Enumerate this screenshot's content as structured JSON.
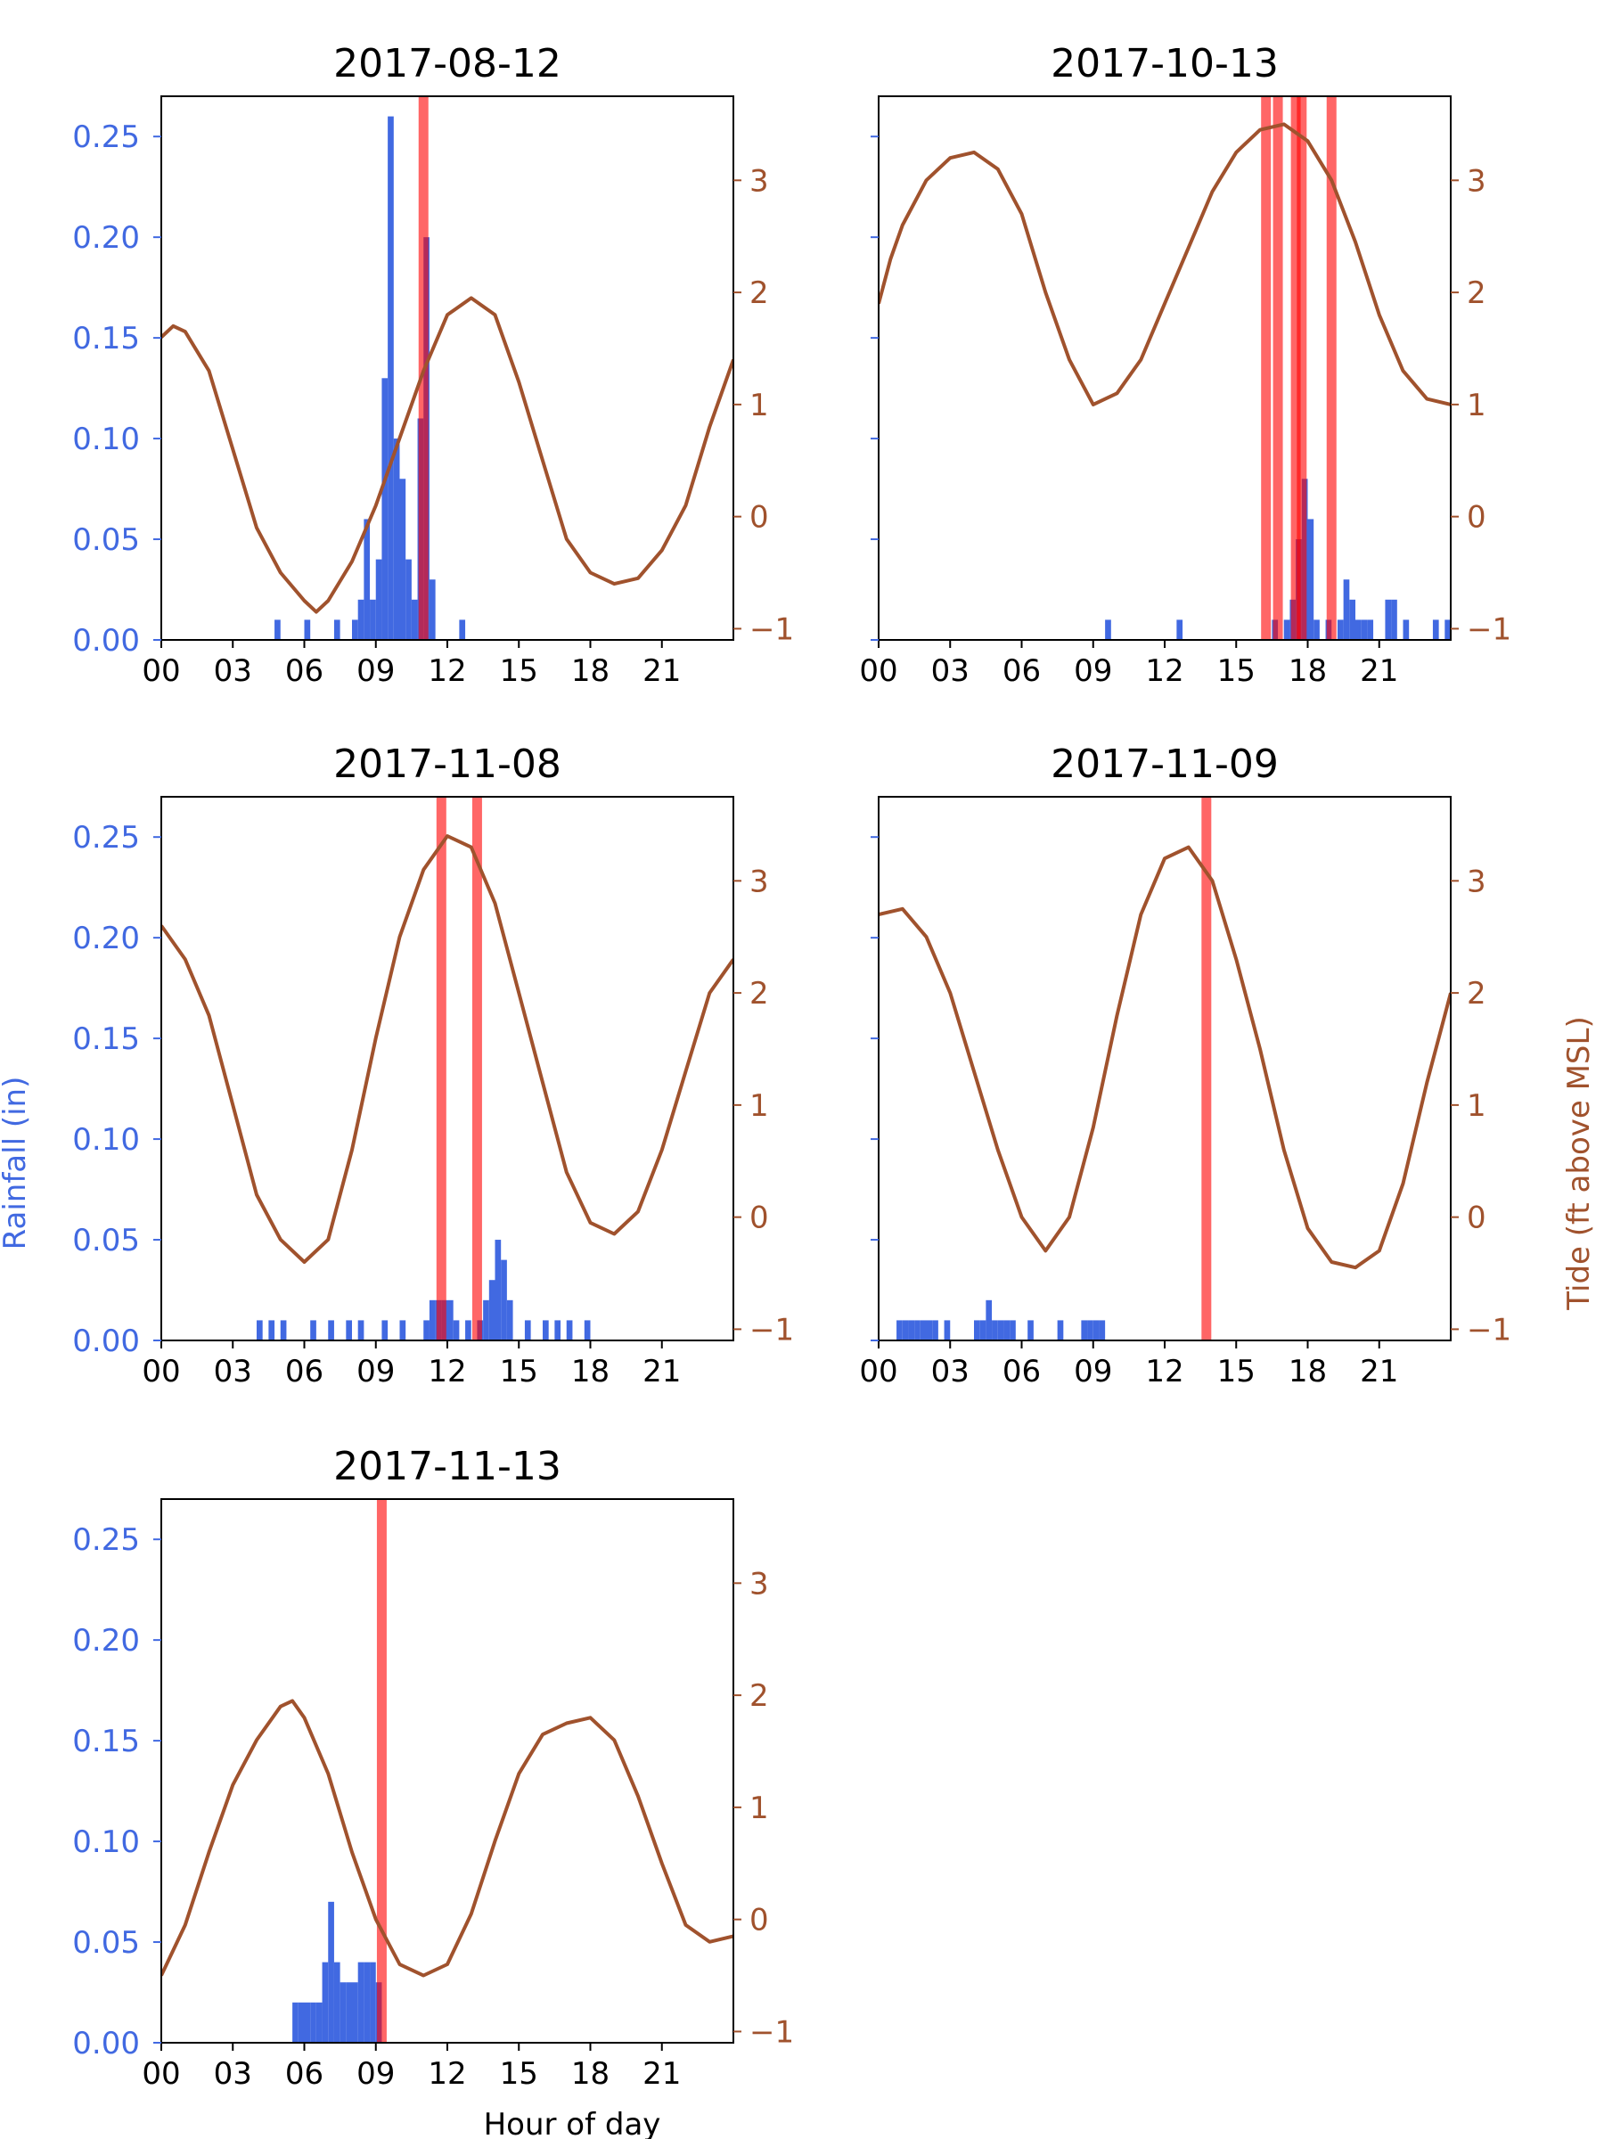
{
  "figure": {
    "xlabel": "Hour of day",
    "ylabel_left": "Rainfall (in)",
    "ylabel_right": "Tide (ft above MSL)",
    "colors": {
      "rain": "#4169e1",
      "tide": "#a0522d",
      "flood": "#ff0000",
      "text": "#000000"
    }
  },
  "chart_data": [
    {
      "type": "bar",
      "title": "2017-08-12",
      "xlim": [
        0,
        24
      ],
      "ylim_left": [
        0,
        0.27
      ],
      "ylim_right": [
        -1.1,
        3.75
      ],
      "x_ticks": [
        "00",
        "03",
        "06",
        "09",
        "12",
        "15",
        "18",
        "21"
      ],
      "left_ticks": [
        "0.00",
        "0.05",
        "0.10",
        "0.15",
        "0.20",
        "0.25"
      ],
      "right_ticks": [
        "−1",
        "0",
        "1",
        "2",
        "3"
      ],
      "rain": [
        [
          4.75,
          0.01
        ],
        [
          6.0,
          0.01
        ],
        [
          7.25,
          0.01
        ],
        [
          8.0,
          0.01
        ],
        [
          8.25,
          0.02
        ],
        [
          8.5,
          0.06
        ],
        [
          8.75,
          0.02
        ],
        [
          9.0,
          0.04
        ],
        [
          9.25,
          0.13
        ],
        [
          9.5,
          0.26
        ],
        [
          9.75,
          0.1
        ],
        [
          10.0,
          0.08
        ],
        [
          10.25,
          0.04
        ],
        [
          10.5,
          0.02
        ],
        [
          10.75,
          0.11
        ],
        [
          11.0,
          0.2
        ],
        [
          11.25,
          0.03
        ],
        [
          12.5,
          0.01
        ]
      ],
      "tide": [
        [
          0,
          1.6
        ],
        [
          0.5,
          1.7
        ],
        [
          1.0,
          1.65
        ],
        [
          2.0,
          1.3
        ],
        [
          3.0,
          0.6
        ],
        [
          4.0,
          -0.1
        ],
        [
          5.0,
          -0.5
        ],
        [
          6.0,
          -0.75
        ],
        [
          6.5,
          -0.85
        ],
        [
          7.0,
          -0.75
        ],
        [
          8.0,
          -0.4
        ],
        [
          9.0,
          0.1
        ],
        [
          10.0,
          0.7
        ],
        [
          11.0,
          1.3
        ],
        [
          12.0,
          1.8
        ],
        [
          13.0,
          1.95
        ],
        [
          14.0,
          1.8
        ],
        [
          15.0,
          1.2
        ],
        [
          16.0,
          0.5
        ],
        [
          17.0,
          -0.2
        ],
        [
          18.0,
          -0.5
        ],
        [
          19.0,
          -0.6
        ],
        [
          20.0,
          -0.55
        ],
        [
          21.0,
          -0.3
        ],
        [
          22.0,
          0.1
        ],
        [
          23.0,
          0.8
        ],
        [
          24.0,
          1.4
        ]
      ],
      "flood_times": [
        11.0
      ]
    },
    {
      "type": "bar",
      "title": "2017-10-13",
      "xlim": [
        0,
        24
      ],
      "ylim_left": [
        0,
        0.27
      ],
      "ylim_right": [
        -1.1,
        3.75
      ],
      "x_ticks": [
        "00",
        "03",
        "06",
        "09",
        "12",
        "15",
        "18",
        "21"
      ],
      "left_ticks": [],
      "right_ticks": [
        "−1",
        "0",
        "1",
        "2",
        "3"
      ],
      "rain": [
        [
          9.5,
          0.01
        ],
        [
          12.5,
          0.01
        ],
        [
          16.5,
          0.01
        ],
        [
          17.0,
          0.01
        ],
        [
          17.25,
          0.02
        ],
        [
          17.5,
          0.05
        ],
        [
          17.75,
          0.08
        ],
        [
          18.0,
          0.06
        ],
        [
          18.25,
          0.01
        ],
        [
          18.75,
          0.01
        ],
        [
          19.25,
          0.01
        ],
        [
          19.5,
          0.03
        ],
        [
          19.75,
          0.02
        ],
        [
          20.0,
          0.01
        ],
        [
          20.25,
          0.01
        ],
        [
          20.5,
          0.01
        ],
        [
          21.25,
          0.02
        ],
        [
          21.5,
          0.02
        ],
        [
          22.0,
          0.01
        ],
        [
          23.25,
          0.01
        ],
        [
          23.75,
          0.01
        ]
      ],
      "tide": [
        [
          0,
          1.9
        ],
        [
          0.5,
          2.3
        ],
        [
          1.0,
          2.6
        ],
        [
          2.0,
          3.0
        ],
        [
          3.0,
          3.2
        ],
        [
          4.0,
          3.25
        ],
        [
          5.0,
          3.1
        ],
        [
          6.0,
          2.7
        ],
        [
          7.0,
          2.0
        ],
        [
          8.0,
          1.4
        ],
        [
          9.0,
          1.0
        ],
        [
          10.0,
          1.1
        ],
        [
          11.0,
          1.4
        ],
        [
          12.0,
          1.9
        ],
        [
          13.0,
          2.4
        ],
        [
          14.0,
          2.9
        ],
        [
          15.0,
          3.25
        ],
        [
          16.0,
          3.45
        ],
        [
          17.0,
          3.5
        ],
        [
          18.0,
          3.35
        ],
        [
          19.0,
          3.0
        ],
        [
          20.0,
          2.45
        ],
        [
          21.0,
          1.8
        ],
        [
          22.0,
          1.3
        ],
        [
          23.0,
          1.05
        ],
        [
          24.0,
          1.0
        ]
      ],
      "flood_times": [
        16.25,
        16.75,
        17.5,
        17.75,
        19.0
      ]
    },
    {
      "type": "bar",
      "title": "2017-11-08",
      "xlim": [
        0,
        24
      ],
      "ylim_left": [
        0,
        0.27
      ],
      "ylim_right": [
        -1.1,
        3.75
      ],
      "x_ticks": [
        "00",
        "03",
        "06",
        "09",
        "12",
        "15",
        "18",
        "21"
      ],
      "left_ticks": [
        "0.00",
        "0.05",
        "0.10",
        "0.15",
        "0.20",
        "0.25"
      ],
      "right_ticks": [
        "−1",
        "0",
        "1",
        "2",
        "3"
      ],
      "rain": [
        [
          4.0,
          0.01
        ],
        [
          4.5,
          0.01
        ],
        [
          5.0,
          0.01
        ],
        [
          6.25,
          0.01
        ],
        [
          7.0,
          0.01
        ],
        [
          7.75,
          0.01
        ],
        [
          8.25,
          0.01
        ],
        [
          9.25,
          0.01
        ],
        [
          10.0,
          0.01
        ],
        [
          11.0,
          0.01
        ],
        [
          11.25,
          0.02
        ],
        [
          11.5,
          0.02
        ],
        [
          11.75,
          0.02
        ],
        [
          12.0,
          0.02
        ],
        [
          12.25,
          0.01
        ],
        [
          12.75,
          0.01
        ],
        [
          13.25,
          0.01
        ],
        [
          13.5,
          0.02
        ],
        [
          13.75,
          0.03
        ],
        [
          14.0,
          0.05
        ],
        [
          14.25,
          0.04
        ],
        [
          14.5,
          0.02
        ],
        [
          15.25,
          0.01
        ],
        [
          16.0,
          0.01
        ],
        [
          16.5,
          0.01
        ],
        [
          17.0,
          0.01
        ],
        [
          17.75,
          0.01
        ]
      ],
      "tide": [
        [
          0,
          2.6
        ],
        [
          1.0,
          2.3
        ],
        [
          2.0,
          1.8
        ],
        [
          3.0,
          1.0
        ],
        [
          4.0,
          0.2
        ],
        [
          5.0,
          -0.2
        ],
        [
          6.0,
          -0.4
        ],
        [
          7.0,
          -0.2
        ],
        [
          8.0,
          0.6
        ],
        [
          9.0,
          1.6
        ],
        [
          10.0,
          2.5
        ],
        [
          11.0,
          3.1
        ],
        [
          12.0,
          3.4
        ],
        [
          13.0,
          3.3
        ],
        [
          14.0,
          2.8
        ],
        [
          15.0,
          2.0
        ],
        [
          16.0,
          1.2
        ],
        [
          17.0,
          0.4
        ],
        [
          18.0,
          -0.05
        ],
        [
          19.0,
          -0.15
        ],
        [
          20.0,
          0.05
        ],
        [
          21.0,
          0.6
        ],
        [
          22.0,
          1.3
        ],
        [
          23.0,
          2.0
        ],
        [
          24.0,
          2.3
        ]
      ],
      "flood_times": [
        11.75,
        13.25
      ]
    },
    {
      "type": "bar",
      "title": "2017-11-09",
      "xlim": [
        0,
        24
      ],
      "ylim_left": [
        0,
        0.27
      ],
      "ylim_right": [
        -1.1,
        3.75
      ],
      "x_ticks": [
        "00",
        "03",
        "06",
        "09",
        "12",
        "15",
        "18",
        "21"
      ],
      "left_ticks": [],
      "right_ticks": [
        "−1",
        "0",
        "1",
        "2",
        "3"
      ],
      "rain": [
        [
          0.75,
          0.01
        ],
        [
          1.0,
          0.01
        ],
        [
          1.25,
          0.01
        ],
        [
          1.5,
          0.01
        ],
        [
          1.75,
          0.01
        ],
        [
          2.0,
          0.01
        ],
        [
          2.25,
          0.01
        ],
        [
          2.75,
          0.01
        ],
        [
          4.0,
          0.01
        ],
        [
          4.25,
          0.01
        ],
        [
          4.5,
          0.02
        ],
        [
          4.75,
          0.01
        ],
        [
          5.0,
          0.01
        ],
        [
          5.25,
          0.01
        ],
        [
          5.5,
          0.01
        ],
        [
          6.25,
          0.01
        ],
        [
          7.5,
          0.01
        ],
        [
          8.5,
          0.01
        ],
        [
          8.75,
          0.01
        ],
        [
          9.0,
          0.01
        ],
        [
          9.25,
          0.01
        ]
      ],
      "tide": [
        [
          0,
          2.7
        ],
        [
          1.0,
          2.75
        ],
        [
          2.0,
          2.5
        ],
        [
          3.0,
          2.0
        ],
        [
          4.0,
          1.3
        ],
        [
          5.0,
          0.6
        ],
        [
          6.0,
          0.0
        ],
        [
          7.0,
          -0.3
        ],
        [
          8.0,
          0.0
        ],
        [
          9.0,
          0.8
        ],
        [
          10.0,
          1.8
        ],
        [
          11.0,
          2.7
        ],
        [
          12.0,
          3.2
        ],
        [
          13.0,
          3.3
        ],
        [
          14.0,
          3.0
        ],
        [
          15.0,
          2.3
        ],
        [
          16.0,
          1.5
        ],
        [
          17.0,
          0.6
        ],
        [
          18.0,
          -0.1
        ],
        [
          19.0,
          -0.4
        ],
        [
          20.0,
          -0.45
        ],
        [
          21.0,
          -0.3
        ],
        [
          22.0,
          0.3
        ],
        [
          23.0,
          1.2
        ],
        [
          24.0,
          2.0
        ]
      ],
      "flood_times": [
        13.75
      ]
    },
    {
      "type": "bar",
      "title": "2017-11-13",
      "xlim": [
        0,
        24
      ],
      "ylim_left": [
        0,
        0.27
      ],
      "ylim_right": [
        -1.1,
        3.75
      ],
      "x_ticks": [
        "00",
        "03",
        "06",
        "09",
        "12",
        "15",
        "18",
        "21"
      ],
      "left_ticks": [
        "0.00",
        "0.05",
        "0.10",
        "0.15",
        "0.20",
        "0.25"
      ],
      "right_ticks": [
        "−1",
        "0",
        "1",
        "2",
        "3"
      ],
      "rain": [
        [
          5.5,
          0.02
        ],
        [
          5.75,
          0.02
        ],
        [
          6.0,
          0.02
        ],
        [
          6.25,
          0.02
        ],
        [
          6.5,
          0.02
        ],
        [
          6.75,
          0.04
        ],
        [
          7.0,
          0.07
        ],
        [
          7.25,
          0.04
        ],
        [
          7.5,
          0.03
        ],
        [
          7.75,
          0.03
        ],
        [
          8.0,
          0.03
        ],
        [
          8.25,
          0.04
        ],
        [
          8.5,
          0.04
        ],
        [
          8.75,
          0.04
        ],
        [
          9.0,
          0.03
        ]
      ],
      "tide": [
        [
          0,
          -0.5
        ],
        [
          1.0,
          -0.05
        ],
        [
          2.0,
          0.6
        ],
        [
          3.0,
          1.2
        ],
        [
          4.0,
          1.6
        ],
        [
          5.0,
          1.9
        ],
        [
          5.5,
          1.95
        ],
        [
          6.0,
          1.8
        ],
        [
          7.0,
          1.3
        ],
        [
          8.0,
          0.6
        ],
        [
          9.0,
          0.0
        ],
        [
          10.0,
          -0.4
        ],
        [
          11.0,
          -0.5
        ],
        [
          12.0,
          -0.4
        ],
        [
          13.0,
          0.05
        ],
        [
          14.0,
          0.7
        ],
        [
          15.0,
          1.3
        ],
        [
          16.0,
          1.65
        ],
        [
          17.0,
          1.75
        ],
        [
          18.0,
          1.8
        ],
        [
          19.0,
          1.6
        ],
        [
          20.0,
          1.1
        ],
        [
          21.0,
          0.5
        ],
        [
          22.0,
          -0.05
        ],
        [
          23.0,
          -0.2
        ],
        [
          24.0,
          -0.15
        ]
      ],
      "flood_times": [
        9.25
      ]
    }
  ]
}
